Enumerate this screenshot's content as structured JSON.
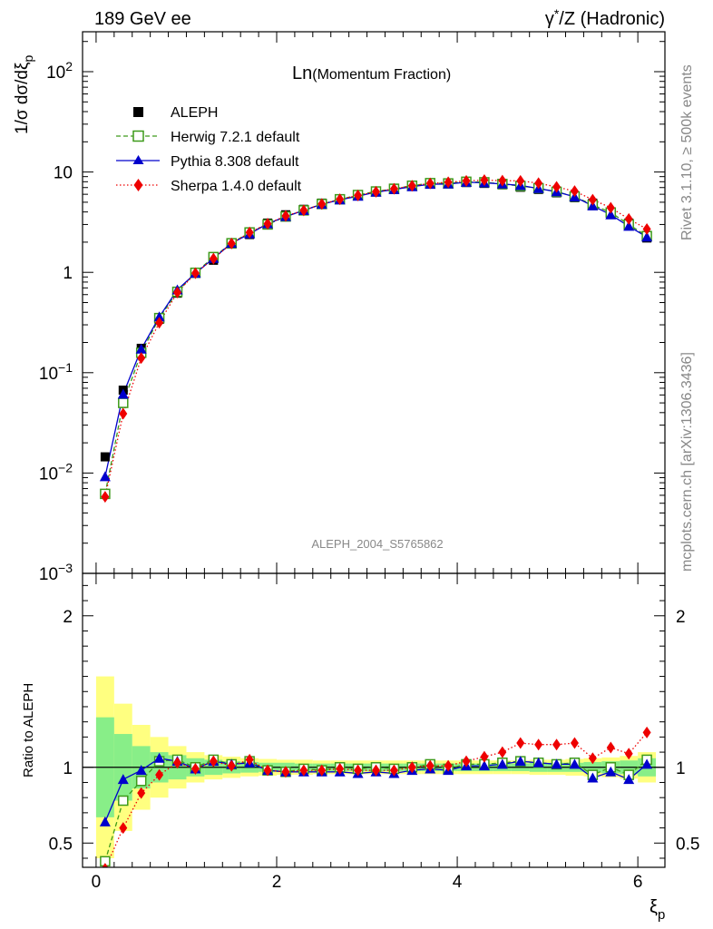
{
  "header": {
    "left": "189 GeV ee",
    "right_prefix": "γ",
    "right_sup": "*",
    "right_suffix": "/Z (Hadronic)"
  },
  "side": {
    "rivet": "Rivet 3.1.10, ≥ 500k events",
    "mcplots": "mcplots.cern.ch [arXiv:1306.3436]"
  },
  "chart_data": [
    {
      "type": "scatter",
      "panel": "main",
      "title_main": "Ln",
      "title_sub": "(Momentum Fraction)",
      "watermark": "ALEPH_2004_S5765862",
      "ylabel_prefix": "1/σ dσ/dξ",
      "ylabel_sub": "p",
      "yscale": "log",
      "ylim": [
        0.001,
        250
      ],
      "xlim": [
        -0.15,
        6.3
      ],
      "y_ticks": [
        {
          "v": 0.01,
          "base": "10",
          "exp": "−2"
        },
        {
          "v": 0.1,
          "base": "10",
          "exp": "−1"
        },
        {
          "v": 1,
          "base": "1",
          "exp": ""
        },
        {
          "v": 10,
          "base": "10",
          "exp": ""
        },
        {
          "v": 100,
          "base": "10",
          "exp": "2"
        },
        {
          "v": 0.001,
          "base": "10",
          "exp": "−3"
        }
      ],
      "legend": [
        "ALEPH",
        "Herwig 7.2.1 default",
        "Pythia 8.308 default",
        "Sherpa 1.4.0 default"
      ],
      "x": [
        0.1,
        0.3,
        0.5,
        0.7,
        0.9,
        1.1,
        1.3,
        1.5,
        1.7,
        1.9,
        2.1,
        2.3,
        2.5,
        2.7,
        2.9,
        3.1,
        3.3,
        3.5,
        3.7,
        3.9,
        4.1,
        4.3,
        4.5,
        4.7,
        4.9,
        5.1,
        5.3,
        5.5,
        5.7,
        5.9,
        6.1
      ],
      "series": [
        {
          "name": "ALEPH",
          "color": "#000000",
          "values": [
            0.0145,
            0.067,
            0.175,
            0.34,
            0.62,
            0.98,
            1.32,
            1.92,
            2.38,
            3.1,
            3.75,
            4.25,
            4.9,
            5.4,
            5.95,
            6.45,
            6.9,
            7.25,
            7.6,
            7.75,
            7.85,
            7.7,
            7.45,
            7.05,
            6.7,
            6.2,
            5.55,
            4.9,
            3.85,
            3.1,
            2.2
          ]
        },
        {
          "name": "Herwig 7.2.1 default",
          "color": "#3d9a1a",
          "values": [
            0.0062,
            0.05,
            0.158,
            0.35,
            0.64,
            0.99,
            1.42,
            1.95,
            2.5,
            3.0,
            3.6,
            4.15,
            4.8,
            5.35,
            5.9,
            6.4,
            6.8,
            7.3,
            7.75,
            7.7,
            8.0,
            7.9,
            7.6,
            7.25,
            6.9,
            6.35,
            5.7,
            4.7,
            3.95,
            3.0,
            2.3
          ]
        },
        {
          "name": "Pythia 8.308 default",
          "color": "#0000cc",
          "values": [
            0.0092,
            0.061,
            0.172,
            0.36,
            0.67,
            0.98,
            1.38,
            1.95,
            2.42,
            3.05,
            3.6,
            4.15,
            4.78,
            5.28,
            5.75,
            6.3,
            6.7,
            7.15,
            7.55,
            7.6,
            7.9,
            7.8,
            7.6,
            7.35,
            6.85,
            6.35,
            5.65,
            4.6,
            3.75,
            2.88,
            2.25
          ]
        },
        {
          "name": "Sherpa 1.4.0 default",
          "color": "#ee0000",
          "values": [
            0.0058,
            0.039,
            0.14,
            0.315,
            0.63,
            0.98,
            1.37,
            1.94,
            2.5,
            3.05,
            3.65,
            4.15,
            4.8,
            5.35,
            5.85,
            6.35,
            6.8,
            7.3,
            7.7,
            7.9,
            8.15,
            8.3,
            8.2,
            8.15,
            7.75,
            7.1,
            6.45,
            5.3,
            4.4,
            3.4,
            2.7
          ]
        }
      ]
    },
    {
      "type": "scatter",
      "panel": "ratio",
      "ylabel": "Ratio to ALEPH",
      "xlabel": "ξ",
      "xlabel_sub": "p",
      "ylim": [
        0.34,
        2.28
      ],
      "xlim": [
        -0.15,
        6.3
      ],
      "x_ticks": [
        {
          "v": 0,
          "label": "0"
        },
        {
          "v": 2,
          "label": "2"
        },
        {
          "v": 4,
          "label": "4"
        },
        {
          "v": 6,
          "label": "6"
        }
      ],
      "y_ticks": [
        {
          "v": 0.5,
          "label": "0.5"
        },
        {
          "v": 1,
          "label": "1"
        },
        {
          "v": 2,
          "label": "2"
        }
      ],
      "x": [
        0.1,
        0.3,
        0.5,
        0.7,
        0.9,
        1.1,
        1.3,
        1.5,
        1.7,
        1.9,
        2.1,
        2.3,
        2.5,
        2.7,
        2.9,
        3.1,
        3.3,
        3.5,
        3.7,
        3.9,
        4.1,
        4.3,
        4.5,
        4.7,
        4.9,
        5.1,
        5.3,
        5.5,
        5.7,
        5.9,
        6.1
      ],
      "band_stat": [
        0.33,
        0.22,
        0.14,
        0.1,
        0.08,
        0.06,
        0.05,
        0.04,
        0.035,
        0.03,
        0.03,
        0.025,
        0.025,
        0.025,
        0.025,
        0.025,
        0.025,
        0.025,
        0.025,
        0.025,
        0.025,
        0.025,
        0.025,
        0.025,
        0.03,
        0.03,
        0.03,
        0.035,
        0.04,
        0.045,
        0.06
      ],
      "band_total": [
        0.6,
        0.42,
        0.28,
        0.2,
        0.14,
        0.1,
        0.08,
        0.07,
        0.06,
        0.055,
        0.05,
        0.05,
        0.045,
        0.045,
        0.045,
        0.045,
        0.045,
        0.045,
        0.045,
        0.045,
        0.045,
        0.045,
        0.045,
        0.045,
        0.05,
        0.05,
        0.055,
        0.06,
        0.065,
        0.075,
        0.1
      ],
      "series": [
        {
          "name": "Herwig 7.2.1 default",
          "color": "#3d9a1a",
          "values": [
            0.38,
            0.78,
            0.91,
            1.04,
            1.05,
            1.0,
            1.05,
            1.02,
            1.04,
            0.98,
            0.97,
            0.99,
            0.98,
            1.0,
            0.99,
            1.0,
            0.99,
            1.0,
            1.02,
            0.99,
            1.02,
            1.02,
            1.03,
            1.04,
            1.03,
            1.02,
            1.03,
            0.95,
            1.0,
            0.95,
            1.05
          ]
        },
        {
          "name": "Pythia 8.308 default",
          "color": "#0000cc",
          "values": [
            0.64,
            0.92,
            0.98,
            1.06,
            1.04,
            0.99,
            1.04,
            1.02,
            1.03,
            0.98,
            0.97,
            0.97,
            0.97,
            0.97,
            0.96,
            0.97,
            0.96,
            0.98,
            0.99,
            0.98,
            1.01,
            1.01,
            1.02,
            1.04,
            1.03,
            1.02,
            1.02,
            0.93,
            0.97,
            0.92,
            1.02
          ]
        },
        {
          "name": "Sherpa 1.4.0 default",
          "color": "#ee0000",
          "values": [
            0.33,
            0.6,
            0.83,
            0.95,
            1.03,
            0.99,
            1.04,
            1.01,
            1.05,
            0.98,
            0.97,
            0.98,
            0.98,
            0.99,
            0.98,
            0.98,
            0.98,
            1.0,
            1.01,
            1.01,
            1.04,
            1.07,
            1.1,
            1.16,
            1.15,
            1.15,
            1.16,
            1.06,
            1.13,
            1.09,
            1.23
          ]
        }
      ]
    }
  ]
}
